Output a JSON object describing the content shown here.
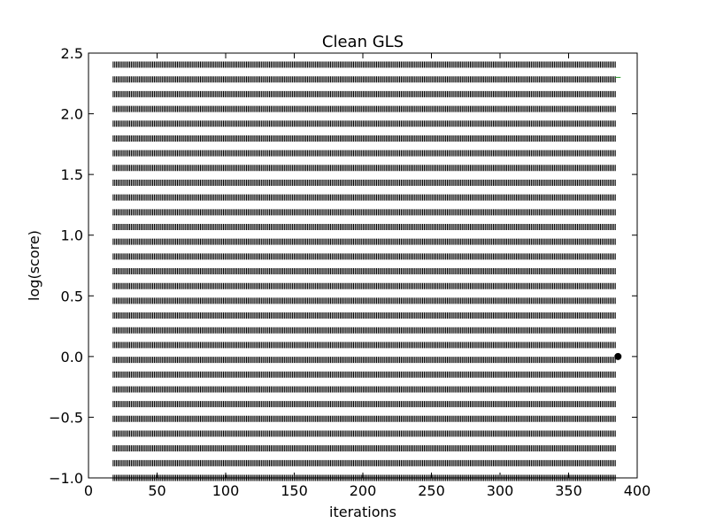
{
  "chart_data": {
    "type": "scatter",
    "title": "Clean GLS",
    "xlabel": "iterations",
    "ylabel": "log(score)",
    "xlim": [
      0,
      400
    ],
    "ylim": [
      -1.0,
      2.5
    ],
    "x_ticks": [
      0,
      50,
      100,
      150,
      200,
      250,
      300,
      350,
      400
    ],
    "x_tick_labels": [
      "0",
      "50",
      "100",
      "150",
      "200",
      "250",
      "300",
      "350",
      "400"
    ],
    "y_ticks": [
      -1.0,
      -0.5,
      0.0,
      0.5,
      1.0,
      1.5,
      2.0,
      2.5
    ],
    "y_tick_labels": [
      "−1.0",
      "−0.5",
      "0.0",
      "0.5",
      "1.0",
      "1.5",
      "2.0",
      "2.5"
    ],
    "grid": false,
    "legend": "none",
    "background_marks": {
      "description_type": "dense vertical tick markers",
      "x_range": [
        18,
        385
      ],
      "x_step": 1.2,
      "y_rows_start": -1.0,
      "y_rows_end": 2.45,
      "y_row_step": 0.1216,
      "color": "#000000"
    },
    "series": [
      {
        "values": [
          {
            "x": 386,
            "y": 0.0
          }
        ],
        "marker": "circle",
        "color": "#000000"
      },
      {
        "values": [
          {
            "x": 386,
            "y": 2.3
          }
        ],
        "marker": "line",
        "color": "#2ca02c"
      }
    ]
  }
}
